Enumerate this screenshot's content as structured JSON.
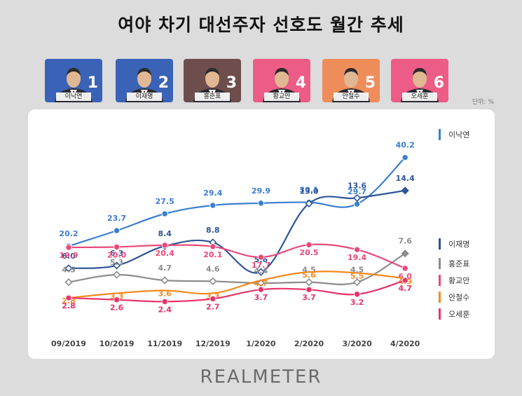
{
  "title": "여야 차기 대선주자 선호도 월간 추세",
  "unit": "단위: %",
  "logo": "REALMETER",
  "candidates": [
    {
      "name": "이낙연",
      "number": "1",
      "bg": "#3a63b8"
    },
    {
      "name": "이재명",
      "number": "2",
      "bg": "#3a63b8"
    },
    {
      "name": "홍준표",
      "number": "3",
      "bg": "#6e4d4d"
    },
    {
      "name": "황교안",
      "number": "4",
      "bg": "#ec5c86"
    },
    {
      "name": "안철수",
      "number": "5",
      "bg": "#ef8d5a"
    },
    {
      "name": "오세훈",
      "number": "6",
      "bg": "#ec5c86"
    }
  ],
  "chart_data": {
    "type": "line",
    "categories": [
      "09/2019",
      "10/2019",
      "11/2019",
      "12/2019",
      "1/2020",
      "2/2020",
      "3/2020",
      "4/2020"
    ],
    "series": [
      {
        "name": "이낙연",
        "color": "#3a7fd0",
        "values": [
          20.2,
          23.7,
          27.5,
          29.4,
          29.9,
          30.1,
          29.7,
          40.2
        ],
        "labels": [
          "20.2",
          "23.7",
          "27.5",
          "29.4",
          "29.9",
          "30.1",
          "29.7",
          "40.2"
        ],
        "marker": "circle"
      },
      {
        "name": "이재명",
        "color": "#2f5597",
        "values": [
          6.0,
          6.3,
          8.4,
          8.8,
          5.6,
          13.0,
          13.6,
          14.4
        ],
        "labels": [
          "6.0",
          "6.3",
          "8.4",
          "8.8",
          "5.6",
          "13.0",
          "13.6",
          "14.4"
        ],
        "marker": "diamond"
      },
      {
        "name": "홍준표",
        "color": "#8c8c8c",
        "values": [
          4.5,
          5.3,
          4.7,
          4.6,
          4.4,
          4.5,
          4.5,
          7.6
        ],
        "labels": [
          "4.5",
          "5.3",
          "4.7",
          "4.6",
          "4.4",
          "4.5",
          "4.5",
          "7.6"
        ],
        "marker": "diamond"
      },
      {
        "name": "황교안",
        "color": "#e84a7a",
        "values": [
          19.9,
          20.0,
          20.4,
          20.1,
          17.7,
          20.5,
          19.4,
          6.0
        ],
        "labels": [
          "19.9",
          "20.0",
          "20.4",
          "20.1",
          "17.7",
          "20.5",
          "19.4",
          "6.0"
        ],
        "marker": "circle"
      },
      {
        "name": "안철수",
        "color": "#f28a1e",
        "values": [
          2.8,
          3.3,
          3.6,
          3.3,
          4.7,
          5.6,
          5.5,
          4.9
        ],
        "labels": [
          "2.8",
          "3.3",
          "3.6",
          "3.3",
          "4.7",
          "5.6",
          "5.5",
          "4.9"
        ],
        "marker": "none"
      },
      {
        "name": "오세훈",
        "color": "#e8336a",
        "values": [
          2.8,
          2.6,
          2.4,
          2.7,
          3.7,
          3.7,
          3.2,
          4.7
        ],
        "labels": [
          "2.8",
          "2.6",
          "2.4",
          "2.7",
          "3.7",
          "3.7",
          "3.2",
          "4.7"
        ],
        "marker": "circle"
      }
    ],
    "legend_position": "right",
    "grid": false,
    "ylim": [
      0,
      42
    ]
  }
}
